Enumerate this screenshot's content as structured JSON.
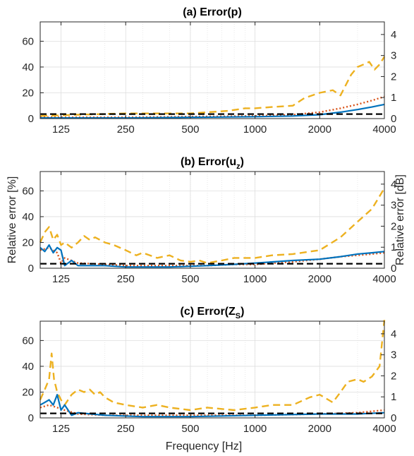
{
  "chart_data": [
    {
      "type": "line",
      "title": "(a) Error(p)",
      "title_main": "(a) Error(p",
      "title_sub": "",
      "title_end": ")",
      "xscale": "log",
      "xlim": [
        100,
        4000
      ],
      "xticks": [
        125,
        250,
        500,
        1000,
        2000,
        4000
      ],
      "xtick_labels": [
        "125",
        "250",
        "500",
        "1000",
        "2000",
        "4000"
      ],
      "ylim": [
        0,
        75
      ],
      "yticks": [
        0,
        20,
        40,
        60
      ],
      "yticks_right": [
        0,
        1,
        2,
        3,
        4
      ],
      "ylim_right": [
        0,
        4.6
      ],
      "grid": true,
      "series": [
        {
          "color": "#EDB120",
          "style": "dashed",
          "x": [
            100,
            150,
            250,
            500,
            750,
            900,
            1000,
            1200,
            1500,
            1700,
            2000,
            2300,
            2500,
            2800,
            3000,
            3200,
            3400,
            3600,
            3800,
            4000
          ],
          "y": [
            2,
            3,
            4,
            4,
            6,
            8,
            8,
            9,
            10,
            16,
            20,
            22,
            18,
            34,
            40,
            42,
            44,
            38,
            42,
            48
          ]
        },
        {
          "color": "#D95319",
          "style": "dotted",
          "x": [
            100,
            250,
            500,
            1000,
            1500,
            2000,
            2500,
            3000,
            3500,
            4000
          ],
          "y": [
            1,
            1,
            1.5,
            2,
            3,
            5,
            8,
            11,
            14,
            17
          ]
        },
        {
          "color": "#0072BD",
          "style": "solid",
          "x": [
            100,
            250,
            500,
            1000,
            1500,
            2000,
            2500,
            3000,
            3500,
            4000
          ],
          "y": [
            0.5,
            0.5,
            1,
            1.5,
            2,
            3,
            5,
            7,
            9,
            11
          ]
        },
        {
          "color": "#000000",
          "style": "dashed",
          "x": [
            100,
            4000
          ],
          "y": [
            3.5,
            3.5
          ]
        }
      ]
    },
    {
      "type": "line",
      "title": "(b) Error(u_z)",
      "title_main": "(b) Error(u",
      "title_sub": "z",
      "title_end": ")",
      "xscale": "log",
      "xlim": [
        100,
        4000
      ],
      "xticks": [
        125,
        250,
        500,
        1000,
        2000,
        4000
      ],
      "xtick_labels": [
        "125",
        "250",
        "500",
        "1000",
        "2000",
        "4000"
      ],
      "ylim": [
        0,
        75
      ],
      "yticks": [
        0,
        20,
        40,
        60
      ],
      "yticks_right": [
        0,
        1,
        2,
        3,
        4
      ],
      "ylim_right": [
        0,
        4.6
      ],
      "ylabel": "Relative error [%]",
      "ylabel_right": "Relative error [dB]",
      "grid": true,
      "series": [
        {
          "color": "#EDB120",
          "style": "dashed",
          "x": [
            100,
            105,
            110,
            115,
            120,
            125,
            130,
            140,
            150,
            160,
            170,
            180,
            200,
            220,
            250,
            280,
            300,
            350,
            400,
            450,
            500,
            550,
            600,
            700,
            800,
            1000,
            1200,
            1500,
            2000,
            2500,
            3000,
            3500,
            4000
          ],
          "y": [
            20,
            28,
            32,
            22,
            26,
            18,
            20,
            16,
            20,
            25,
            22,
            24,
            20,
            18,
            14,
            10,
            12,
            8,
            10,
            6,
            5,
            6,
            4,
            6,
            8,
            8,
            10,
            11,
            14,
            24,
            36,
            46,
            62
          ]
        },
        {
          "color": "#D95319",
          "style": "dotted",
          "x": [
            100,
            110,
            120,
            125,
            130,
            150,
            200,
            250,
            400,
            600,
            800,
            1000,
            1500,
            2000,
            2500,
            3000,
            3500,
            4000
          ],
          "y": [
            14,
            16,
            12,
            4,
            8,
            4,
            3,
            2,
            2,
            2,
            3,
            3,
            5,
            7,
            9,
            10,
            11,
            12
          ]
        },
        {
          "color": "#0072BD",
          "style": "solid",
          "x": [
            100,
            105,
            110,
            115,
            120,
            125,
            130,
            140,
            150,
            200,
            250,
            400,
            600,
            800,
            1000,
            1500,
            2000,
            2500,
            3000,
            3500,
            4000
          ],
          "y": [
            16,
            13,
            18,
            12,
            16,
            14,
            2,
            6,
            2,
            2,
            1,
            1,
            2,
            3,
            4,
            6,
            7,
            9,
            11,
            12,
            13
          ]
        },
        {
          "color": "#000000",
          "style": "dashed",
          "x": [
            100,
            4000
          ],
          "y": [
            3.5,
            3.5
          ]
        }
      ]
    },
    {
      "type": "line",
      "title": "(c) Error(Z_S)",
      "title_main": "(c) Error(Z",
      "title_sub": "S",
      "title_end": ")",
      "xscale": "log",
      "xlim": [
        100,
        4000
      ],
      "xticks": [
        125,
        250,
        500,
        1000,
        2000,
        4000
      ],
      "xtick_labels": [
        "125",
        "250",
        "500",
        "1000",
        "2000",
        "4000"
      ],
      "ylim": [
        0,
        75
      ],
      "yticks": [
        0,
        20,
        40,
        60
      ],
      "yticks_right": [
        0,
        1,
        2,
        3,
        4
      ],
      "ylim_right": [
        0,
        4.6
      ],
      "xlabel": "Frequency [Hz]",
      "grid": true,
      "series": [
        {
          "color": "#EDB120",
          "style": "dashed",
          "x": [
            100,
            105,
            110,
            113,
            116,
            120,
            125,
            130,
            140,
            150,
            160,
            170,
            180,
            190,
            200,
            220,
            250,
            300,
            350,
            400,
            500,
            600,
            800,
            1000,
            1200,
            1500,
            1800,
            2000,
            2300,
            2500,
            2700,
            3000,
            3200,
            3500,
            3800,
            4000
          ],
          "y": [
            14,
            22,
            30,
            50,
            30,
            20,
            14,
            10,
            18,
            22,
            20,
            22,
            18,
            20,
            16,
            12,
            10,
            8,
            10,
            8,
            6,
            8,
            6,
            8,
            10,
            10,
            16,
            18,
            12,
            20,
            28,
            30,
            28,
            32,
            40,
            76
          ]
        },
        {
          "color": "#D95319",
          "style": "dotted",
          "x": [
            100,
            110,
            120,
            130,
            150,
            200,
            300,
            500,
            1000,
            2000,
            3000,
            4000
          ],
          "y": [
            8,
            10,
            8,
            6,
            3,
            2,
            2,
            2,
            2,
            3,
            4,
            6
          ]
        },
        {
          "color": "#0072BD",
          "style": "solid",
          "x": [
            100,
            105,
            110,
            115,
            120,
            125,
            130,
            140,
            150,
            200,
            300,
            500,
            1000,
            2000,
            3000,
            4000
          ],
          "y": [
            10,
            12,
            14,
            10,
            18,
            6,
            10,
            2,
            4,
            2,
            1,
            1,
            2,
            3,
            3,
            4
          ]
        },
        {
          "color": "#000000",
          "style": "dashed",
          "x": [
            100,
            4000
          ],
          "y": [
            3.5,
            3.5
          ]
        }
      ]
    }
  ]
}
